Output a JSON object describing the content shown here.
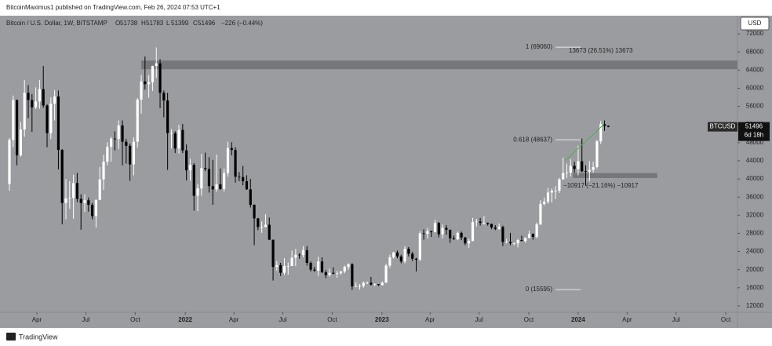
{
  "header": {
    "publisher": "BitcoinMaximus1 published on TradingView.com, Feb 26, 2024 07:53 UTC+1"
  },
  "footer": {
    "brand": "TradingView"
  },
  "chart_data": {
    "type": "candlestick",
    "title": "Bitcoin / U.S. Dollar, 1W, BITSTAMP",
    "ohlc_labels": [
      "O",
      "H",
      "L",
      "C"
    ],
    "change": "−226 (−0.44%)",
    "currency": "USD",
    "symbol": "BTCUSD",
    "countdown": "6d 18h",
    "up_color": "#ffffff",
    "down_color": "#000000",
    "background": "#9b9ca0",
    "ylim": [
      10600,
      76000
    ],
    "yticks": [
      12000,
      16000,
      20000,
      24000,
      28000,
      32000,
      36000,
      40000,
      44000,
      48000,
      52000,
      56000,
      60000,
      64000,
      68000,
      72000
    ],
    "xlim": [
      -2.5,
      193.3
    ],
    "xticks": [
      {
        "value": 7.3,
        "label": "Apr"
      },
      {
        "value": 20.3,
        "label": "Jul"
      },
      {
        "value": 33.4,
        "label": "Oct"
      },
      {
        "value": 46.7,
        "label": "2022"
      },
      {
        "value": 59.6,
        "label": "Apr"
      },
      {
        "value": 72.6,
        "label": "Jul"
      },
      {
        "value": 85.7,
        "label": "Oct"
      },
      {
        "value": 98.9,
        "label": "2023"
      },
      {
        "value": 111.7,
        "label": "Apr"
      },
      {
        "value": 124.7,
        "label": "Jul"
      },
      {
        "value": 137.9,
        "label": "Oct"
      },
      {
        "value": 151,
        "label": "2024"
      },
      {
        "value": 164,
        "label": "Apr"
      },
      {
        "value": 177,
        "label": "Jul"
      },
      {
        "value": 190.2,
        "label": "Oct"
      }
    ],
    "candles": [
      [
        38900,
        49000,
        37400,
        48600
      ],
      [
        48600,
        58400,
        47000,
        57400
      ],
      [
        57400,
        57500,
        43000,
        45200
      ],
      [
        45200,
        52600,
        44900,
        50900
      ],
      [
        50900,
        61800,
        49300,
        59000
      ],
      [
        59000,
        60700,
        53400,
        57400
      ],
      [
        57400,
        58700,
        50400,
        55800
      ],
      [
        55800,
        60200,
        55400,
        57100
      ],
      [
        57100,
        61800,
        55500,
        59800
      ],
      [
        59800,
        64900,
        55700,
        56200
      ],
      [
        56200,
        56500,
        47000,
        50100
      ],
      [
        50100,
        58000,
        48800,
        56600
      ],
      [
        56600,
        59600,
        52900,
        58200
      ],
      [
        58200,
        59500,
        42100,
        46400
      ],
      [
        46400,
        46600,
        30000,
        34700
      ],
      [
        34700,
        40000,
        31100,
        35700
      ],
      [
        35700,
        39500,
        33400,
        35800
      ],
      [
        35800,
        40900,
        31200,
        39100
      ],
      [
        39100,
        41300,
        34900,
        35600
      ],
      [
        35600,
        36600,
        28800,
        34700
      ],
      [
        34700,
        36600,
        32700,
        35300
      ],
      [
        35300,
        35900,
        32800,
        34300
      ],
      [
        34300,
        34700,
        31100,
        31800
      ],
      [
        31800,
        35400,
        29300,
        35400
      ],
      [
        35400,
        42600,
        35300,
        39900
      ],
      [
        39900,
        45300,
        37600,
        43800
      ],
      [
        43800,
        48100,
        43000,
        47100
      ],
      [
        47100,
        49300,
        43800,
        48900
      ],
      [
        48900,
        50500,
        46300,
        48800
      ],
      [
        48800,
        52900,
        46600,
        51800
      ],
      [
        51800,
        52900,
        43000,
        48200
      ],
      [
        48200,
        48800,
        43400,
        47300
      ],
      [
        47300,
        47800,
        39600,
        43200
      ],
      [
        43200,
        49200,
        40800,
        48200
      ],
      [
        48200,
        57800,
        46900,
        57500
      ],
      [
        57500,
        62900,
        54400,
        61500
      ],
      [
        61500,
        67000,
        59700,
        60900
      ],
      [
        60900,
        62900,
        57900,
        61300
      ],
      [
        61300,
        65000,
        59400,
        64900
      ],
      [
        64900,
        69000,
        62300,
        65500
      ],
      [
        65500,
        66400,
        55600,
        59000
      ],
      [
        59000,
        59500,
        53600,
        57300
      ],
      [
        57300,
        59000,
        42000,
        50100
      ],
      [
        50100,
        51000,
        46700,
        50100
      ],
      [
        50100,
        50500,
        45700,
        46700
      ],
      [
        46700,
        51900,
        45600,
        50800
      ],
      [
        50800,
        52100,
        45700,
        46300
      ],
      [
        46300,
        47600,
        39700,
        41900
      ],
      [
        41900,
        44400,
        39600,
        43100
      ],
      [
        43100,
        43500,
        33000,
        36300
      ],
      [
        36300,
        38900,
        32900,
        37900
      ],
      [
        37900,
        45500,
        36300,
        42400
      ],
      [
        42400,
        45800,
        41700,
        42200
      ],
      [
        42200,
        44800,
        37000,
        38400
      ],
      [
        38400,
        44200,
        34300,
        37700
      ],
      [
        37700,
        45400,
        37200,
        38800
      ],
      [
        38800,
        42300,
        37600,
        37800
      ],
      [
        37800,
        42300,
        37200,
        41300
      ],
      [
        41300,
        48200,
        40500,
        46800
      ],
      [
        46800,
        48100,
        45200,
        46400
      ],
      [
        46400,
        47000,
        39200,
        40500
      ],
      [
        40500,
        41500,
        39500,
        40400
      ],
      [
        40400,
        42900,
        38600,
        39500
      ],
      [
        39500,
        40800,
        37600,
        37700
      ],
      [
        37700,
        40000,
        33700,
        34300
      ],
      [
        34300,
        34400,
        25400,
        31300
      ],
      [
        31300,
        31400,
        28700,
        29400
      ],
      [
        29400,
        30600,
        28100,
        29400
      ],
      [
        29400,
        32200,
        29300,
        29900
      ],
      [
        29900,
        31500,
        26500,
        26600
      ],
      [
        26600,
        26600,
        17600,
        20600
      ],
      [
        20600,
        21900,
        19700,
        21000
      ],
      [
        21000,
        21500,
        18600,
        19300
      ],
      [
        19300,
        22500,
        18800,
        20800
      ],
      [
        20800,
        21600,
        18900,
        20800
      ],
      [
        20800,
        24200,
        20800,
        22600
      ],
      [
        22600,
        24600,
        20800,
        23300
      ],
      [
        23300,
        23600,
        22400,
        23200
      ],
      [
        23200,
        25200,
        22700,
        24300
      ],
      [
        24300,
        25200,
        20900,
        21500
      ],
      [
        21500,
        21800,
        19600,
        20000
      ],
      [
        20000,
        20600,
        19500,
        19800
      ],
      [
        19800,
        22800,
        18600,
        21800
      ],
      [
        21800,
        22700,
        19300,
        19400
      ],
      [
        19400,
        19900,
        18100,
        18800
      ],
      [
        18800,
        20200,
        18500,
        19300
      ],
      [
        19300,
        20500,
        19000,
        19100
      ],
      [
        19100,
        19700,
        18200,
        19200
      ],
      [
        19200,
        19700,
        18900,
        19600
      ],
      [
        19600,
        20900,
        19200,
        20600
      ],
      [
        20600,
        21400,
        20000,
        21200
      ],
      [
        21200,
        21400,
        15500,
        16300
      ],
      [
        16300,
        17200,
        16200,
        16300
      ],
      [
        16300,
        16800,
        15600,
        16400
      ],
      [
        16400,
        17400,
        16000,
        17100
      ],
      [
        17100,
        17400,
        16800,
        17100
      ],
      [
        17100,
        18400,
        16500,
        16700
      ],
      [
        16700,
        17000,
        16400,
        16800
      ],
      [
        16800,
        16800,
        16400,
        16600
      ],
      [
        16600,
        17400,
        16500,
        17100
      ],
      [
        17100,
        21300,
        17100,
        20900
      ],
      [
        20900,
        23300,
        20400,
        22700
      ],
      [
        22700,
        23900,
        22400,
        23800
      ],
      [
        23800,
        24200,
        22500,
        22900
      ],
      [
        22900,
        23300,
        21400,
        21800
      ],
      [
        21800,
        25200,
        21400,
        24600
      ],
      [
        24600,
        25000,
        22900,
        23500
      ],
      [
        23500,
        23900,
        21900,
        22400
      ],
      [
        22400,
        22600,
        19600,
        22200
      ],
      [
        22200,
        28500,
        21900,
        28000
      ],
      [
        28000,
        28900,
        26600,
        27900
      ],
      [
        27900,
        29200,
        26900,
        28500
      ],
      [
        28500,
        28600,
        27200,
        28300
      ],
      [
        28300,
        31000,
        28200,
        30300
      ],
      [
        30300,
        30500,
        27100,
        27800
      ],
      [
        27800,
        30000,
        26900,
        29200
      ],
      [
        29200,
        29800,
        27700,
        28800
      ],
      [
        28800,
        28800,
        25900,
        26900
      ],
      [
        26900,
        27500,
        26600,
        26700
      ],
      [
        26700,
        28400,
        26500,
        28100
      ],
      [
        28100,
        28400,
        26500,
        27100
      ],
      [
        27100,
        27200,
        25400,
        25800
      ],
      [
        25800,
        26800,
        24800,
        26300
      ],
      [
        26300,
        31400,
        26300,
        30500
      ],
      [
        30500,
        31200,
        29500,
        30600
      ],
      [
        30600,
        31400,
        29700,
        30300
      ],
      [
        30300,
        31800,
        29900,
        30300
      ],
      [
        30300,
        30400,
        29700,
        30100
      ],
      [
        30100,
        30100,
        28900,
        29300
      ],
      [
        29300,
        29800,
        28700,
        29000
      ],
      [
        29000,
        30200,
        28800,
        29400
      ],
      [
        29400,
        29700,
        25200,
        26100
      ],
      [
        26100,
        26800,
        25800,
        26100
      ],
      [
        26100,
        28100,
        25400,
        25800
      ],
      [
        25800,
        26000,
        25400,
        25800
      ],
      [
        25800,
        26800,
        24900,
        26500
      ],
      [
        26500,
        27500,
        26300,
        26300
      ],
      [
        26300,
        27100,
        25900,
        27000
      ],
      [
        27000,
        28600,
        26900,
        27900
      ],
      [
        27900,
        28000,
        26600,
        27200
      ],
      [
        27200,
        30400,
        26900,
        30000
      ],
      [
        30000,
        35300,
        29800,
        34500
      ],
      [
        34500,
        35900,
        34100,
        35000
      ],
      [
        35000,
        38000,
        34500,
        37000
      ],
      [
        37000,
        37900,
        34800,
        37400
      ],
      [
        37400,
        38400,
        35600,
        37400
      ],
      [
        37400,
        40200,
        36900,
        39900
      ],
      [
        39900,
        44700,
        39900,
        41300
      ],
      [
        41300,
        43400,
        40200,
        41400
      ],
      [
        41400,
        44400,
        40600,
        42900
      ],
      [
        42900,
        43800,
        41400,
        42200
      ],
      [
        42200,
        47300,
        40800,
        43900
      ],
      [
        43900,
        48900,
        41500,
        41700
      ],
      [
        41700,
        43000,
        38500,
        41600
      ],
      [
        41600,
        43900,
        39500,
        42000
      ],
      [
        42000,
        43800,
        41400,
        42600
      ],
      [
        42600,
        48600,
        42300,
        48300
      ],
      [
        48300,
        52800,
        47700,
        52100
      ],
      [
        52100,
        52900,
        50600,
        51700
      ],
      [
        51738,
        51783,
        51399,
        51496
      ]
    ],
    "zones": [
      {
        "x": [
          35,
          193.3
        ],
        "y": [
          64200,
          66100
        ],
        "color": "#76777b"
      },
      {
        "x": [
          149.6,
          172
        ],
        "y": [
          40200,
          41300
        ],
        "color": "#76777b"
      }
    ],
    "fib": [
      {
        "label": "1 (69060)",
        "value": 69060
      },
      {
        "label": "0.618 (48637)",
        "value": 48637
      },
      {
        "label": "0 (15595)",
        "value": 15595
      }
    ],
    "fib_x": [
      145,
      151.7
    ],
    "measures": [
      {
        "label": "13673 (26.51%) 13673",
        "value": 69060
      },
      {
        "label": "−10917 (−21.16%) −10917",
        "value": 40200
      }
    ],
    "trendline": {
      "color": "#4caf50",
      "x": [
        147.5,
        157.9
      ],
      "y": [
        44000,
        52100
      ]
    }
  }
}
